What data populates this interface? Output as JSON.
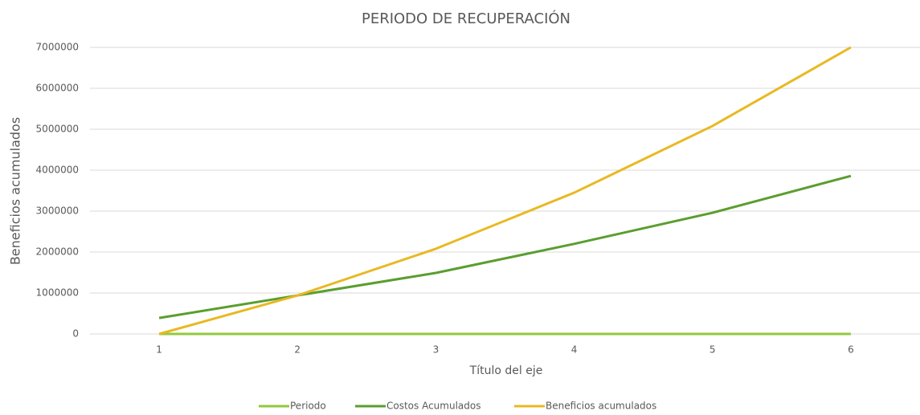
{
  "chart_data": {
    "type": "line",
    "title": "PERIODO DE RECUPERACIÓN",
    "x_label": "Título del eje",
    "y_label": "Beneficios acumulados",
    "categories": [
      "1",
      "2",
      "3",
      "4",
      "5",
      "6"
    ],
    "series": [
      {
        "name": "Periodo",
        "color": "#92c83e",
        "values": [
          0,
          1,
          2,
          3,
          4,
          5
        ]
      },
      {
        "name": "Costos Acumulados",
        "color": "#5a9e2f",
        "values": [
          390000,
          940000,
          1490000,
          2200000,
          2960000,
          3860000
        ]
      },
      {
        "name": "Beneficios acumulados",
        "color": "#e8b923",
        "values": [
          0,
          940000,
          2080000,
          3450000,
          5080000,
          7000000
        ]
      }
    ],
    "ylim": [
      0,
      7000000
    ],
    "yticks": [
      0,
      1000000,
      2000000,
      3000000,
      4000000,
      5000000,
      6000000,
      7000000
    ],
    "grid": true,
    "legend": "bottom"
  }
}
